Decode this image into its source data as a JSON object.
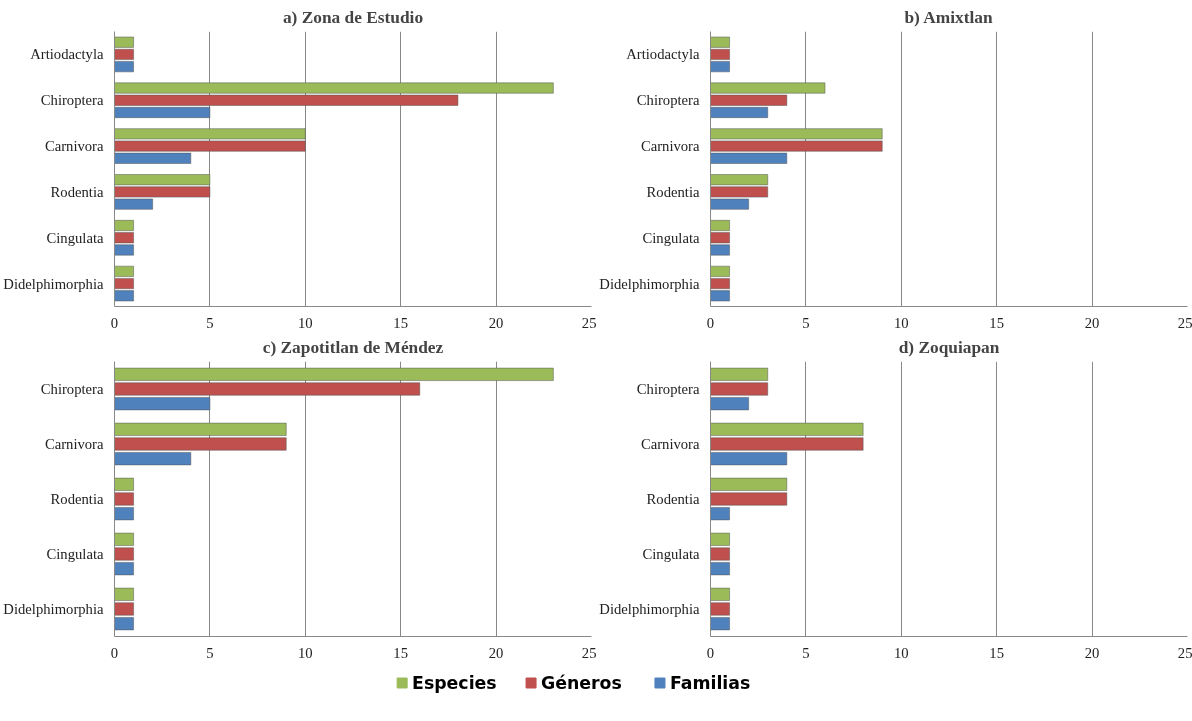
{
  "chart_data": [
    {
      "type": "bar",
      "orientation": "horizontal",
      "title": "a) Zona de Estudio",
      "categories": [
        "Artiodactyla",
        "Chiroptera",
        "Carnivora",
        "Rodentia",
        "Cingulata",
        "Didelphimorphia"
      ],
      "series": [
        {
          "name": "Especies",
          "color": "#9bbb59",
          "values": [
            1,
            23,
            10,
            5,
            1,
            1
          ]
        },
        {
          "name": "Géneros",
          "color": "#c0504d",
          "values": [
            1,
            18,
            10,
            5,
            1,
            1
          ]
        },
        {
          "name": "Familias",
          "color": "#4f81bd",
          "values": [
            1,
            5,
            4,
            2,
            1,
            1
          ]
        }
      ],
      "xlim": [
        0,
        25
      ],
      "xticks": [
        0,
        5,
        10,
        15,
        20,
        25
      ],
      "grid": "x",
      "legend": "bottom"
    },
    {
      "type": "bar",
      "orientation": "horizontal",
      "title": "b) Amixtlan",
      "categories": [
        "Artiodactyla",
        "Chiroptera",
        "Carnivora",
        "Rodentia",
        "Cingulata",
        "Didelphimorphia"
      ],
      "series": [
        {
          "color": "#9bbb59",
          "values": [
            1,
            6,
            9,
            3,
            1,
            1
          ]
        },
        {
          "color": "#c0504d",
          "values": [
            1,
            4,
            9,
            3,
            1,
            1
          ]
        },
        {
          "color": "#4f81bd",
          "values": [
            1,
            3,
            4,
            2,
            1,
            1
          ]
        }
      ],
      "xlim": [
        0,
        25
      ],
      "xticks": [
        0,
        5,
        10,
        15,
        20,
        25
      ],
      "grid": "x"
    },
    {
      "type": "bar",
      "orientation": "horizontal",
      "title": "c) Zapotitlan de Méndez",
      "categories": [
        "Chiroptera",
        "Carnivora",
        "Rodentia",
        "Cingulata",
        "Didelphimorphia"
      ],
      "series": [
        {
          "color": "#9bbb59",
          "values": [
            23,
            9,
            1,
            1,
            1
          ]
        },
        {
          "color": "#c0504d",
          "values": [
            16,
            9,
            1,
            1,
            1
          ]
        },
        {
          "color": "#4f81bd",
          "values": [
            5,
            4,
            1,
            1,
            1
          ]
        }
      ],
      "xlim": [
        0,
        25
      ],
      "xticks": [
        0,
        5,
        10,
        15,
        20,
        25
      ],
      "grid": "x"
    },
    {
      "type": "bar",
      "orientation": "horizontal",
      "title": "d) Zoquiapan",
      "categories": [
        "Chiroptera",
        "Carnivora",
        "Rodentia",
        "Cingulata",
        "Didelphimorphia"
      ],
      "series": [
        {
          "color": "#9bbb59",
          "values": [
            3,
            8,
            4,
            1,
            1
          ]
        },
        {
          "color": "#c0504d",
          "values": [
            3,
            8,
            4,
            1,
            1
          ]
        },
        {
          "color": "#4f81bd",
          "values": [
            2,
            4,
            1,
            1,
            1
          ]
        }
      ],
      "xlim": [
        0,
        25
      ],
      "xticks": [
        0,
        5,
        10,
        15,
        20,
        25
      ],
      "grid": "x"
    }
  ]
}
